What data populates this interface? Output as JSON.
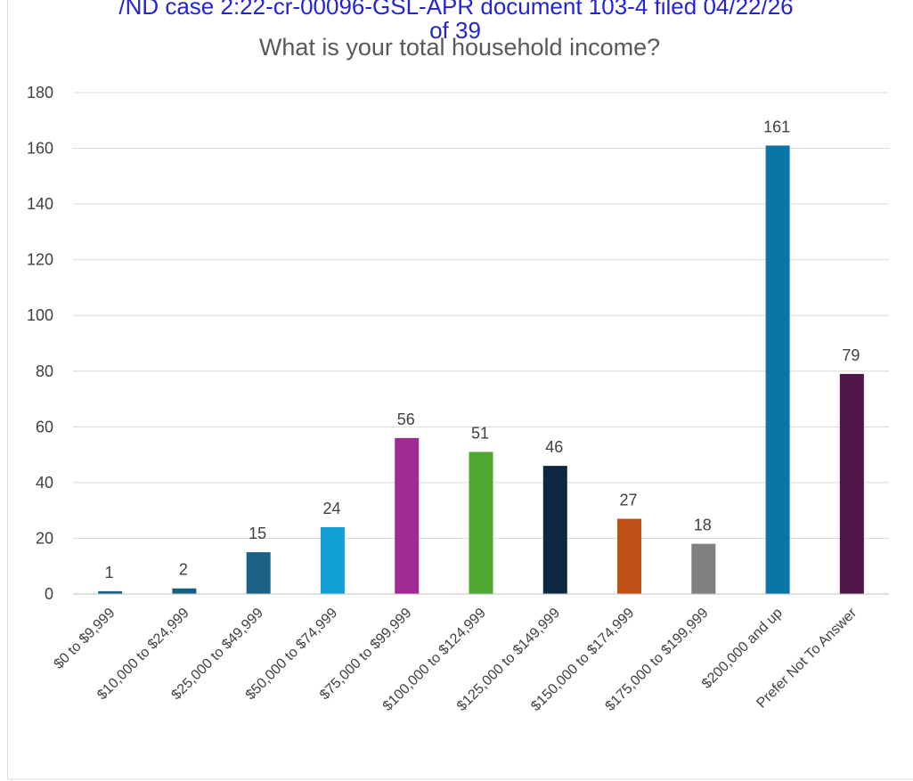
{
  "doc_header": {
    "line1": "/ND case 2:22-cr-00096-GSL-APR      document 103-4      filed 04/22/26",
    "line2": "of 39"
  },
  "chart_data": {
    "type": "bar",
    "title": "What is your total household income?",
    "xlabel": "",
    "ylabel": "",
    "categories": [
      "$0 to $9,999",
      "$10,000 to $24,999",
      "$25,000 to $49,999",
      "$50,000 to $74,999",
      "$75,000 to $99,999",
      "$100,000 to $124,999",
      "$125,000 to $149,999",
      "$150,000 to $174,999",
      "$175,000 to $199,999",
      "$200,000 and up",
      "Prefer Not To Answer"
    ],
    "values": [
      1,
      2,
      15,
      24,
      56,
      51,
      46,
      27,
      18,
      161,
      79
    ],
    "bar_colors": [
      "#156082",
      "#156082",
      "#1a6183",
      "#12a0d7",
      "#a02b93",
      "#4ea72e",
      "#0e2841",
      "#c04f15",
      "#7f7f7f",
      "#0a75a6",
      "#4e1548"
    ],
    "ylim": [
      0,
      180
    ],
    "yticks": [
      0,
      20,
      40,
      60,
      80,
      100,
      120,
      140,
      160,
      180
    ],
    "grid": true,
    "legend": "none",
    "data_labels": true
  }
}
